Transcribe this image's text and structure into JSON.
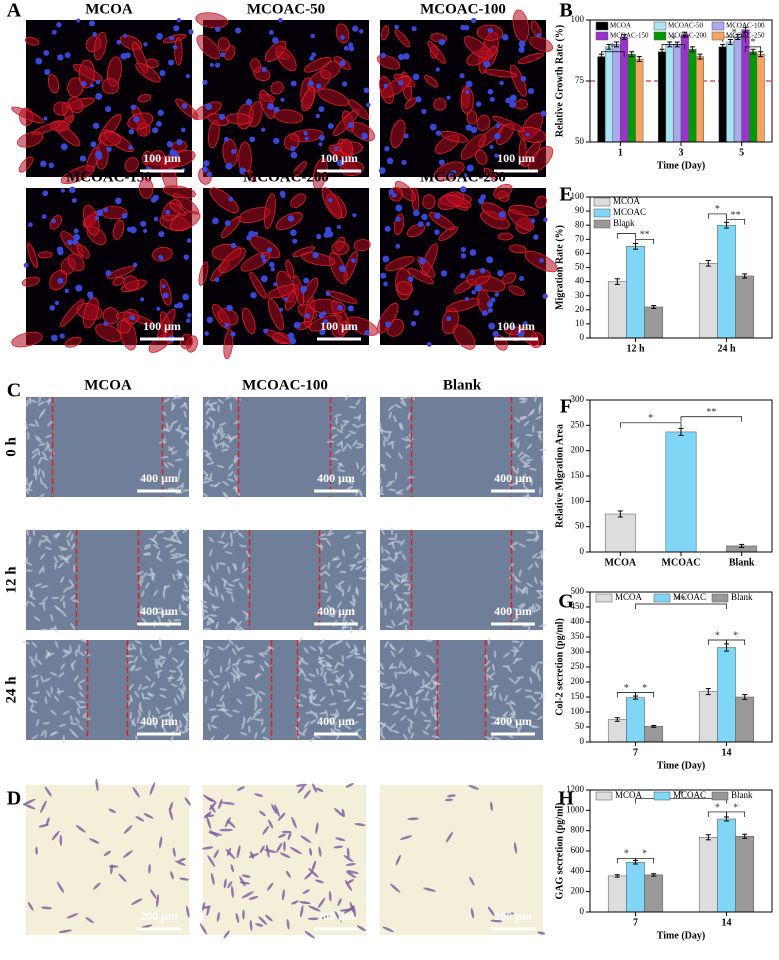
{
  "panel_labels": [
    "A",
    "B",
    "C",
    "D",
    "E",
    "F",
    "G",
    "H"
  ],
  "panel_a": {
    "titles": [
      "MCOA",
      "MCOAC-50",
      "MCOAC-100",
      "MCOAC-150",
      "MCOAC-200",
      "MCOAC-250"
    ],
    "scale_bar": "100 μm"
  },
  "panel_c": {
    "titles": [
      "MCOA",
      "MCOAC-100",
      "Blank"
    ],
    "rows": [
      "0 h",
      "12 h",
      "24 h"
    ],
    "scale_bar": "400 μm"
  },
  "panel_d": {
    "scale_bar": "200 μm"
  },
  "chart_data": [
    {
      "type": "bar",
      "ylabel": "Relative Growth Rate (%)",
      "xlabel": "Time (Day)",
      "categories": [
        "1",
        "3",
        "5"
      ],
      "ylim": [
        50,
        100
      ],
      "yticks": [
        50,
        75,
        100
      ],
      "reference_line": 75,
      "reference_color": "#cc0000",
      "legend": "top",
      "series": [
        {
          "name": "MCOA",
          "color": "#000000",
          "values": [
            85,
            87,
            89
          ],
          "errors": [
            1,
            1,
            1
          ]
        },
        {
          "name": "MCOAC-50",
          "color": "#a9e4f2",
          "values": [
            89,
            90,
            91
          ],
          "errors": [
            1,
            1,
            1
          ]
        },
        {
          "name": "MCOAC-100",
          "color": "#a9a9ee",
          "values": [
            90,
            90,
            93
          ],
          "errors": [
            1,
            1,
            1
          ]
        },
        {
          "name": "MCOAC-150",
          "color": "#9933cc",
          "values": [
            93,
            94,
            96
          ],
          "errors": [
            1,
            1,
            1
          ]
        },
        {
          "name": "MCOAC-200",
          "color": "#009a00",
          "values": [
            86,
            88,
            87
          ],
          "errors": [
            1,
            1,
            1
          ]
        },
        {
          "name": "MCOAC-250",
          "color": "#f4a460",
          "values": [
            84,
            85,
            86
          ],
          "errors": [
            1,
            1,
            1
          ]
        }
      ],
      "annotations": [
        "*",
        "*",
        "*",
        "*"
      ]
    },
    {
      "type": "bar",
      "ylabel": "Migration Rate (%)",
      "categories": [
        "12 h",
        "24 h"
      ],
      "ylim": [
        0,
        100
      ],
      "yticks": [
        0,
        10,
        20,
        30,
        40,
        50,
        60,
        70,
        80,
        90,
        100
      ],
      "legend": "upper left",
      "series": [
        {
          "name": "MCOA",
          "color": "#dddddd",
          "values": [
            40,
            53
          ],
          "errors": [
            2,
            2
          ]
        },
        {
          "name": "MCOAC",
          "color": "#7fd6f7",
          "values": [
            65,
            80
          ],
          "errors": [
            2,
            2
          ]
        },
        {
          "name": "Blank",
          "color": "#999999",
          "values": [
            22,
            44
          ],
          "errors": [
            1,
            1.5
          ]
        }
      ],
      "annotations": [
        "*",
        "**",
        "*",
        "**"
      ]
    },
    {
      "type": "bar",
      "ylabel": "Relative Migration Area",
      "categories": [
        "MCOA",
        "MCOAC",
        "Blank"
      ],
      "ylim": [
        0,
        300
      ],
      "yticks": [
        0,
        50,
        100,
        150,
        200,
        250,
        300
      ],
      "series": [
        {
          "colors": [
            "#dddddd",
            "#7fd6f7",
            "#999999"
          ],
          "values": [
            75,
            237,
            12
          ],
          "errors": [
            6,
            7,
            3
          ]
        }
      ],
      "annotations": [
        "*",
        "**"
      ]
    },
    {
      "type": "bar",
      "ylabel": "Col-2 secretion (pg/ml)",
      "xlabel": "Time (Day)",
      "categories": [
        "7",
        "14"
      ],
      "ylim": [
        0,
        500
      ],
      "yticks": [
        0,
        50,
        100,
        150,
        200,
        250,
        300,
        350,
        400,
        450,
        500
      ],
      "legend": "top",
      "series": [
        {
          "name": "MCOA",
          "color": "#dddddd",
          "values": [
            75,
            168
          ],
          "errors": [
            6,
            10
          ]
        },
        {
          "name": "MCOAC",
          "color": "#7fd6f7",
          "values": [
            148,
            315
          ],
          "errors": [
            5,
            12
          ]
        },
        {
          "name": "Blank",
          "color": "#999999",
          "values": [
            52,
            150
          ],
          "errors": [
            3,
            8
          ]
        }
      ],
      "annotations": [
        "*",
        "*",
        "*",
        "*",
        "**"
      ]
    },
    {
      "type": "bar",
      "ylabel": "GAG secretion (pg/ml)",
      "xlabel": "Time (Day)",
      "categories": [
        "7",
        "14"
      ],
      "ylim": [
        0,
        1200
      ],
      "yticks": [
        0,
        200,
        400,
        600,
        800,
        1000,
        1200
      ],
      "legend": "top",
      "series": [
        {
          "name": "MCOA",
          "color": "#dddddd",
          "values": [
            355,
            735
          ],
          "errors": [
            12,
            25
          ]
        },
        {
          "name": "MCOAC",
          "color": "#7fd6f7",
          "values": [
            490,
            915
          ],
          "errors": [
            18,
            20
          ]
        },
        {
          "name": "Blank",
          "color": "#999999",
          "values": [
            365,
            745
          ],
          "errors": [
            12,
            20
          ]
        }
      ],
      "annotations": [
        "*",
        "*",
        "*",
        "*",
        "*"
      ]
    }
  ]
}
